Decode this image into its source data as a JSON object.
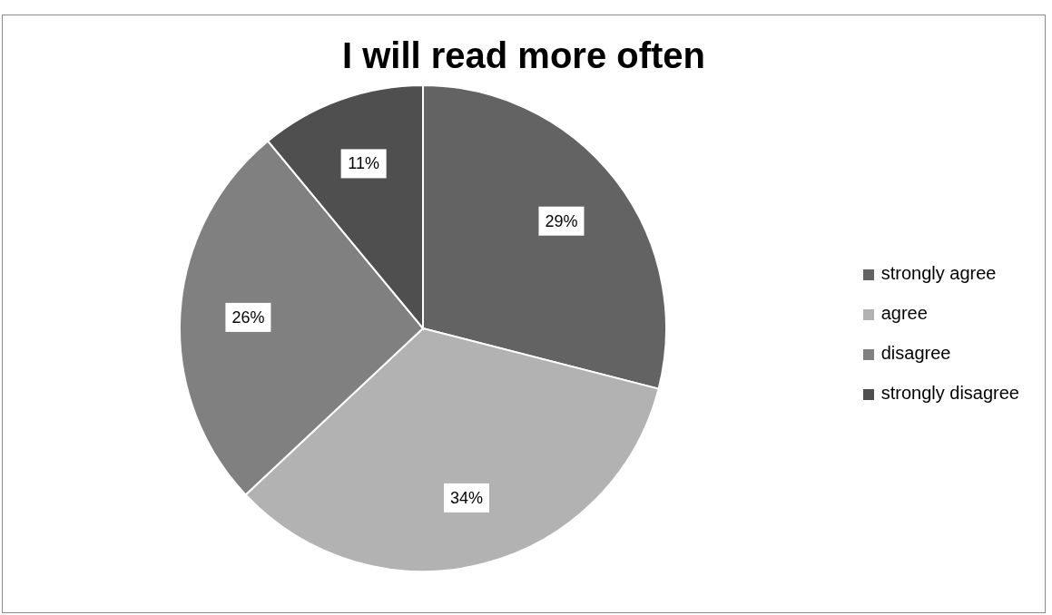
{
  "chart_data": {
    "type": "pie",
    "title": "I will read more often",
    "categories": [
      "strongly agree",
      "agree",
      "disagree",
      "strongly disagree"
    ],
    "values": [
      29,
      34,
      26,
      11
    ],
    "value_labels": [
      "29%",
      "34%",
      "26%",
      "11%"
    ],
    "colors": [
      "#636363",
      "#b2b2b2",
      "#808080",
      "#4f4f4f"
    ],
    "legend": "right"
  }
}
